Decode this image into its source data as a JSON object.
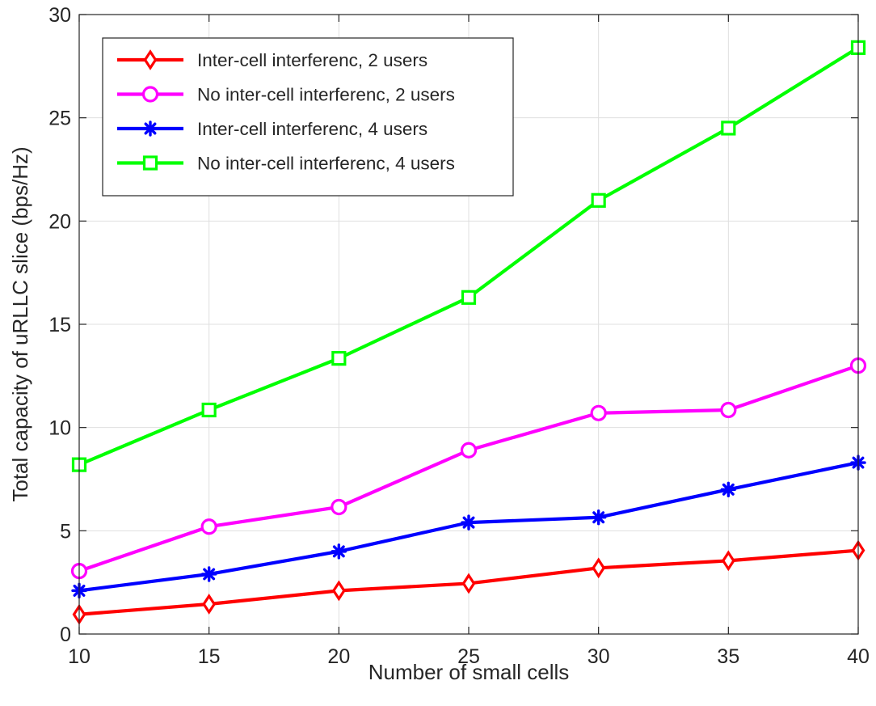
{
  "chart_data": {
    "type": "line",
    "title": "",
    "xlabel": "Number of small cells",
    "ylabel": "Total capacity of uRLLC slice (bps/Hz)",
    "xlim": [
      10,
      40
    ],
    "ylim": [
      0,
      30
    ],
    "xticks": [
      10,
      15,
      20,
      25,
      30,
      35,
      40
    ],
    "yticks": [
      0,
      5,
      10,
      15,
      20,
      25,
      30
    ],
    "grid": true,
    "legend_position": "top-left",
    "x": [
      10,
      15,
      20,
      25,
      30,
      35,
      40
    ],
    "series": [
      {
        "name": "Inter-cell interferenc, 2 users",
        "color": "#ff0000",
        "marker": "diamond",
        "values": [
          0.95,
          1.45,
          2.1,
          2.45,
          3.2,
          3.55,
          4.05
        ]
      },
      {
        "name": "No inter-cell interferenc, 2 users",
        "color": "#ff00ff",
        "marker": "circle",
        "values": [
          3.05,
          5.2,
          6.15,
          8.9,
          10.7,
          10.85,
          13.0
        ]
      },
      {
        "name": "Inter-cell interferenc, 4 users",
        "color": "#0000ff",
        "marker": "asterisk",
        "values": [
          2.1,
          2.9,
          4.0,
          5.4,
          5.65,
          7.0,
          8.3
        ]
      },
      {
        "name": "No inter-cell interferenc, 4 users",
        "color": "#00ff00",
        "marker": "square",
        "values": [
          8.2,
          10.85,
          13.35,
          16.3,
          21.0,
          24.5,
          28.4
        ]
      }
    ]
  }
}
